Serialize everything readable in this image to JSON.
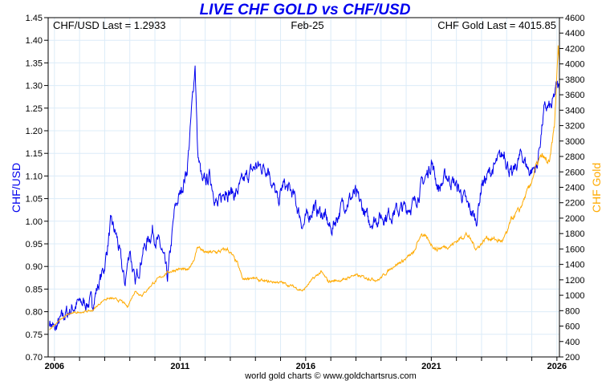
{
  "chart_data": {
    "type": "line",
    "title": "LIVE CHF GOLD vs CHF/USD",
    "subtitle_center": "Feb-25",
    "annotation_left": "CHF/USD Last = 1.2933",
    "annotation_right": "CHF Gold Last = 4015.85",
    "footer": "world gold charts © www.goldchartsrus.com",
    "xlim": [
      2005.75,
      2026.1
    ],
    "x_ticks": [
      2006,
      2011,
      2016,
      2021,
      2026
    ],
    "x_tick_labels": [
      "2006",
      "2011",
      "2016",
      "2021",
      "2026"
    ],
    "y_left": {
      "label": "CHF/USD",
      "lim": [
        0.7,
        1.45
      ],
      "ticks": [
        "0.70",
        "0.75",
        "0.80",
        "0.85",
        "0.90",
        "0.95",
        "1.00",
        "1.05",
        "1.10",
        "1.15",
        "1.20",
        "1.25",
        "1.30",
        "1.35",
        "1.40",
        "1.45"
      ]
    },
    "y_right": {
      "label": "CHF Gold",
      "lim": [
        200,
        4600
      ],
      "ticks": [
        "200",
        "400",
        "600",
        "800",
        "1000",
        "1200",
        "1400",
        "1600",
        "1800",
        "2000",
        "2200",
        "2400",
        "2600",
        "2800",
        "3000",
        "3200",
        "3400",
        "3600",
        "3800",
        "4000",
        "4200",
        "4400",
        "4600"
      ]
    },
    "grid": true,
    "series": [
      {
        "name": "CHF/USD",
        "axis": "left",
        "color": "#0000ee",
        "x": [
          2005.8,
          2006.0,
          2006.5,
          2007.0,
          2007.5,
          2008.0,
          2008.25,
          2008.5,
          2008.8,
          2009.0,
          2009.2,
          2009.5,
          2009.9,
          2010.3,
          2010.5,
          2010.8,
          2011.0,
          2011.3,
          2011.6,
          2011.7,
          2011.9,
          2012.2,
          2012.5,
          2012.8,
          2013.2,
          2013.7,
          2014.0,
          2014.5,
          2014.9,
          2015.1,
          2015.5,
          2015.9,
          2016.3,
          2016.8,
          2017.0,
          2017.5,
          2018.0,
          2018.5,
          2019.0,
          2019.5,
          2020.0,
          2020.3,
          2020.8,
          2021.0,
          2021.3,
          2021.6,
          2022.0,
          2022.4,
          2022.8,
          2023.0,
          2023.5,
          2023.9,
          2024.2,
          2024.6,
          2024.9,
          2025.2,
          2025.5,
          2025.8,
          2026.0,
          2026.1
        ],
        "y": [
          0.78,
          0.76,
          0.8,
          0.82,
          0.82,
          0.9,
          1.0,
          0.96,
          0.86,
          0.94,
          0.86,
          0.93,
          0.98,
          0.93,
          0.87,
          1.03,
          1.06,
          1.12,
          1.35,
          1.15,
          1.08,
          1.1,
          1.03,
          1.07,
          1.06,
          1.1,
          1.12,
          1.12,
          1.04,
          1.08,
          1.06,
          0.99,
          1.03,
          1.01,
          0.98,
          1.04,
          1.06,
          1.0,
          1.01,
          1.02,
          1.03,
          1.04,
          1.1,
          1.13,
          1.07,
          1.1,
          1.08,
          1.04,
          1.0,
          1.08,
          1.12,
          1.15,
          1.1,
          1.15,
          1.11,
          1.12,
          1.25,
          1.25,
          1.3,
          1.29
        ]
      },
      {
        "name": "CHF Gold",
        "axis": "right",
        "color": "#ffaa00",
        "x": [
          2005.8,
          2006.3,
          2006.6,
          2007.0,
          2007.5,
          2008.0,
          2008.25,
          2008.7,
          2008.9,
          2009.2,
          2009.5,
          2009.9,
          2010.5,
          2010.9,
          2011.3,
          2011.6,
          2011.7,
          2012.0,
          2012.5,
          2012.9,
          2013.3,
          2013.5,
          2013.8,
          2014.3,
          2014.9,
          2015.2,
          2015.9,
          2016.2,
          2016.6,
          2016.9,
          2017.5,
          2017.9,
          2018.5,
          2018.9,
          2019.5,
          2019.9,
          2020.3,
          2020.6,
          2020.9,
          2021.2,
          2021.8,
          2022.2,
          2022.4,
          2022.8,
          2023.2,
          2023.8,
          2024.0,
          2024.2,
          2024.5,
          2024.9,
          2025.2,
          2025.4,
          2025.7,
          2025.9,
          2026.05,
          2026.1
        ],
        "y": [
          560,
          700,
          760,
          780,
          800,
          950,
          960,
          920,
          850,
          1050,
          1000,
          1150,
          1300,
          1340,
          1320,
          1500,
          1640,
          1550,
          1560,
          1600,
          1400,
          1200,
          1230,
          1180,
          1170,
          1150,
          1060,
          1180,
          1300,
          1180,
          1200,
          1260,
          1220,
          1200,
          1380,
          1450,
          1550,
          1800,
          1700,
          1600,
          1650,
          1750,
          1800,
          1600,
          1750,
          1700,
          1800,
          2000,
          2100,
          2400,
          2700,
          2800,
          2700,
          3200,
          4200,
          4015
        ]
      }
    ]
  }
}
